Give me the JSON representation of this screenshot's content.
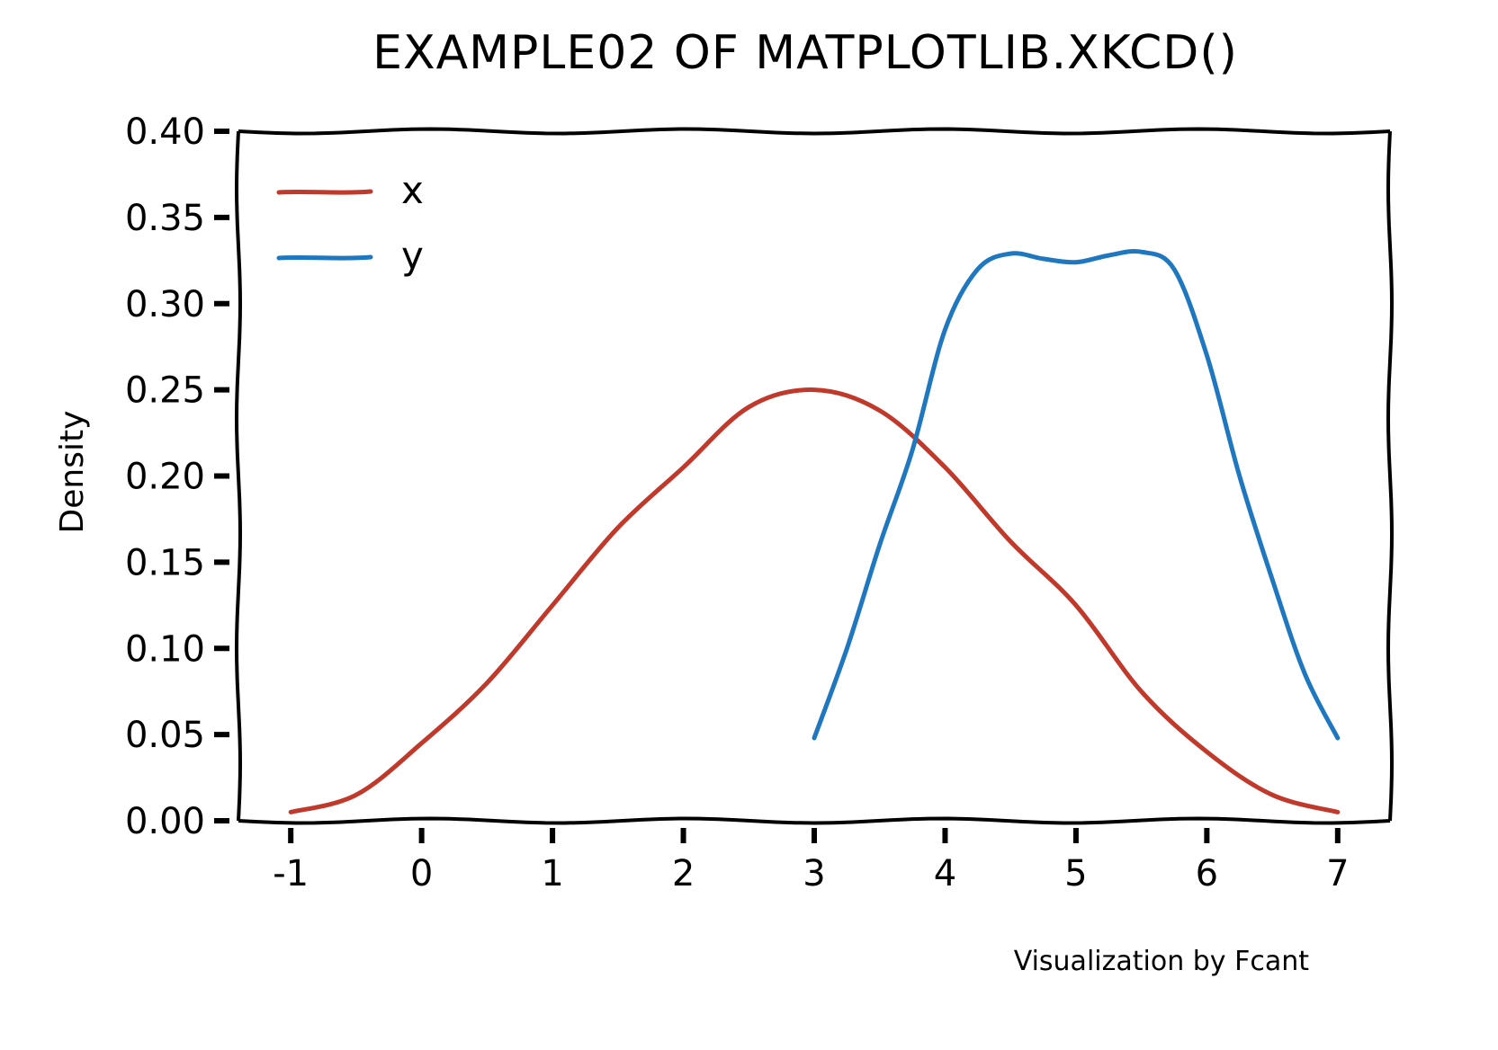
{
  "chart_data": {
    "type": "line",
    "title": "EXAMPLE02 OF MATPLOTLIB.XKCD()",
    "xlabel": "",
    "ylabel": "Density",
    "xlim": [
      -1.4,
      7.4
    ],
    "ylim": [
      0,
      0.4
    ],
    "xticks": [
      -1,
      0,
      1,
      2,
      3,
      4,
      5,
      6,
      7
    ],
    "xtick_labels": [
      "-1",
      "0",
      "1",
      "2",
      "3",
      "4",
      "5",
      "6",
      "7"
    ],
    "yticks": [
      0,
      0.05,
      0.1,
      0.15,
      0.2,
      0.25,
      0.3,
      0.35,
      0.4
    ],
    "ytick_labels": [
      "0.00",
      "0.05",
      "0.10",
      "0.15",
      "0.20",
      "0.25",
      "0.30",
      "0.35",
      "0.40"
    ],
    "grid": false,
    "legend_position": "top-left",
    "series": [
      {
        "name": "x",
        "color": "#c0392b",
        "points": [
          [
            -1.0,
            0.005
          ],
          [
            -0.5,
            0.015
          ],
          [
            0.0,
            0.045
          ],
          [
            0.5,
            0.08
          ],
          [
            1.0,
            0.125
          ],
          [
            1.5,
            0.17
          ],
          [
            2.0,
            0.205
          ],
          [
            2.5,
            0.24
          ],
          [
            3.0,
            0.25
          ],
          [
            3.5,
            0.238
          ],
          [
            4.0,
            0.205
          ],
          [
            4.5,
            0.162
          ],
          [
            5.0,
            0.125
          ],
          [
            5.5,
            0.075
          ],
          [
            6.0,
            0.04
          ],
          [
            6.5,
            0.015
          ],
          [
            7.0,
            0.005
          ]
        ]
      },
      {
        "name": "y",
        "color": "#1f77c0",
        "points": [
          [
            3.0,
            0.048
          ],
          [
            3.25,
            0.1
          ],
          [
            3.5,
            0.16
          ],
          [
            3.75,
            0.215
          ],
          [
            4.0,
            0.285
          ],
          [
            4.25,
            0.32
          ],
          [
            4.5,
            0.329
          ],
          [
            4.75,
            0.326
          ],
          [
            5.0,
            0.324
          ],
          [
            5.25,
            0.328
          ],
          [
            5.5,
            0.33
          ],
          [
            5.75,
            0.32
          ],
          [
            6.0,
            0.27
          ],
          [
            6.25,
            0.2
          ],
          [
            6.5,
            0.14
          ],
          [
            6.75,
            0.085
          ],
          [
            7.0,
            0.048
          ]
        ]
      }
    ],
    "annotation": "Visualization by Fcant"
  }
}
